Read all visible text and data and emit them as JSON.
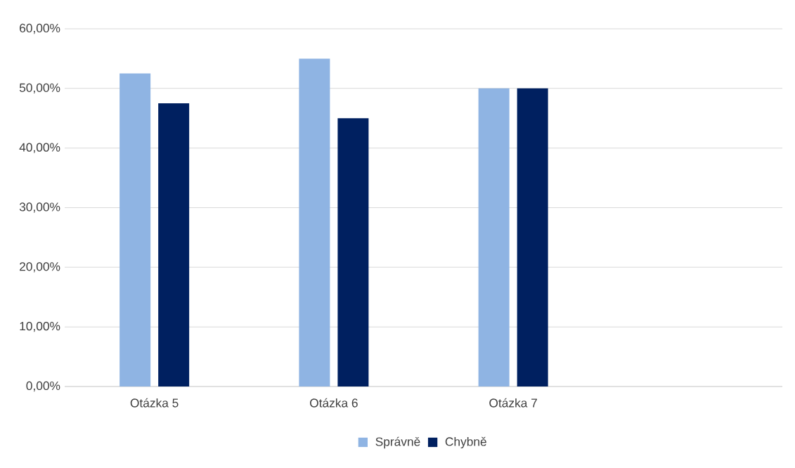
{
  "chart_data": {
    "type": "bar",
    "categories": [
      "Otázka 5",
      "Otázka 6",
      "Otázka 7",
      null
    ],
    "series": [
      {
        "name": "Správně",
        "color": "#8fb4e3",
        "values": [
          52.5,
          55,
          50,
          null
        ]
      },
      {
        "name": "Chybně",
        "color": "#002060",
        "values": [
          47.5,
          45,
          50,
          null
        ]
      }
    ],
    "ylim": [
      0,
      60
    ],
    "yticks": [
      {
        "value": 0,
        "label": "0,00%"
      },
      {
        "value": 10,
        "label": "10,00%"
      },
      {
        "value": 20,
        "label": "20,00%"
      },
      {
        "value": 30,
        "label": "30,00%"
      },
      {
        "value": 40,
        "label": "40,00%"
      },
      {
        "value": 50,
        "label": "50,00%"
      },
      {
        "value": 60,
        "label": "60,00%"
      }
    ],
    "grid": "y",
    "legend": "bottom"
  }
}
